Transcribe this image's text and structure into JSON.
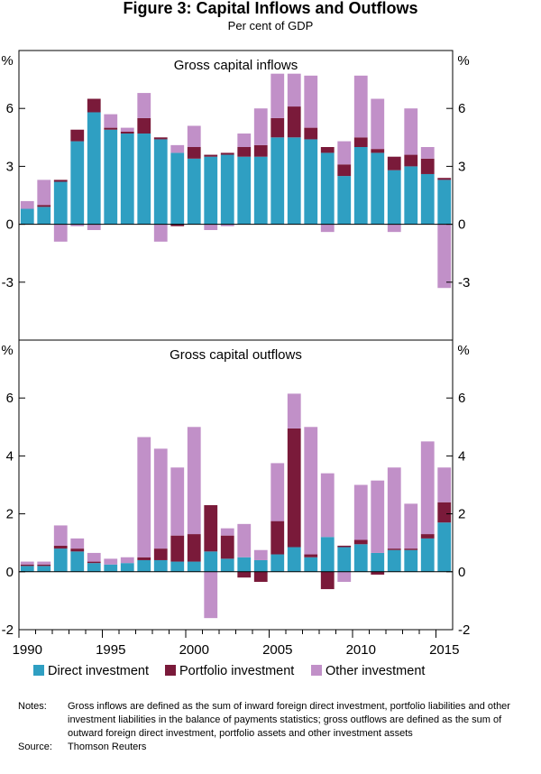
{
  "figure": {
    "title": "Figure 3: Capital Inflows and Outflows",
    "subtitle": "Per cent of GDP"
  },
  "colors": {
    "direct": "#2f9fc2",
    "portfolio": "#7a1a3a",
    "other": "#c190c8"
  },
  "legend": {
    "direct": "Direct investment",
    "portfolio": "Portfolio investment",
    "other": "Other investment"
  },
  "notes": {
    "notes_label": "Notes:",
    "notes_text": "Gross inflows are defined as the sum of inward foreign direct investment, portfolio liabilities and other investment liabilities in the balance of payments statistics; gross outflows are defined as the sum of outward foreign direct investment, portfolio assets and other investment assets",
    "source_label": "Source:",
    "source_text": "Thomson Reuters"
  },
  "chart_data": [
    {
      "type": "bar",
      "stacked": true,
      "title": "Gross capital inflows",
      "unit_label": "%",
      "ylim": [
        -6,
        9
      ],
      "yticks": [
        -3,
        0,
        3,
        6
      ],
      "x": [
        1990,
        1991,
        1992,
        1993,
        1994,
        1995,
        1996,
        1997,
        1998,
        1999,
        2000,
        2001,
        2002,
        2003,
        2004,
        2005,
        2006,
        2007,
        2008,
        2009,
        2010,
        2011,
        2012,
        2013,
        2014,
        2015
      ],
      "series": [
        {
          "name": "Direct investment",
          "key": "direct",
          "values": [
            0.8,
            0.9,
            2.2,
            4.3,
            5.8,
            4.9,
            4.7,
            4.7,
            4.4,
            3.7,
            3.4,
            3.5,
            3.6,
            3.5,
            3.5,
            4.5,
            4.5,
            4.4,
            3.7,
            2.5,
            4.0,
            3.7,
            2.8,
            3.0,
            2.6,
            2.3
          ]
        },
        {
          "name": "Portfolio investment",
          "key": "portfolio",
          "values": [
            0.0,
            0.1,
            0.1,
            0.6,
            0.7,
            0.1,
            0.1,
            0.8,
            0.1,
            -0.1,
            0.6,
            0.1,
            0.1,
            0.5,
            0.6,
            1.0,
            1.6,
            0.6,
            0.3,
            0.6,
            0.5,
            0.2,
            0.7,
            0.6,
            0.8,
            0.1
          ]
        },
        {
          "name": "Other investment",
          "key": "other",
          "values": [
            0.4,
            1.3,
            -0.9,
            -0.1,
            -0.3,
            0.7,
            0.2,
            1.3,
            -0.9,
            0.4,
            1.1,
            -0.3,
            -0.1,
            0.7,
            1.9,
            2.3,
            1.7,
            2.7,
            -0.4,
            1.2,
            3.2,
            2.6,
            -0.4,
            2.4,
            0.6,
            -3.3
          ]
        }
      ]
    },
    {
      "type": "bar",
      "stacked": true,
      "title": "Gross capital outflows",
      "unit_label": "%",
      "ylim": [
        -2,
        8
      ],
      "yticks": [
        -2,
        0,
        2,
        4,
        6
      ],
      "x": [
        1990,
        1991,
        1992,
        1993,
        1994,
        1995,
        1996,
        1997,
        1998,
        1999,
        2000,
        2001,
        2002,
        2003,
        2004,
        2005,
        2006,
        2007,
        2008,
        2009,
        2010,
        2011,
        2012,
        2013,
        2014,
        2015
      ],
      "xtick_labels": [
        "1990",
        "1995",
        "2000",
        "2005",
        "2010",
        "2015"
      ],
      "series": [
        {
          "name": "Direct investment",
          "key": "direct",
          "values": [
            0.2,
            0.2,
            0.8,
            0.7,
            0.3,
            0.25,
            0.3,
            0.4,
            0.4,
            0.35,
            0.35,
            0.7,
            0.45,
            0.5,
            0.4,
            0.6,
            0.85,
            0.5,
            1.2,
            0.85,
            0.95,
            0.65,
            0.75,
            0.75,
            1.15,
            1.7
          ]
        },
        {
          "name": "Portfolio investment",
          "key": "portfolio",
          "values": [
            0.05,
            0.05,
            0.1,
            0.1,
            0.05,
            0.0,
            0.0,
            0.1,
            0.4,
            0.9,
            0.95,
            1.6,
            0.8,
            -0.2,
            -0.35,
            1.15,
            4.1,
            0.1,
            -0.6,
            0.05,
            0.15,
            -0.1,
            0.05,
            0.05,
            0.15,
            0.7
          ]
        },
        {
          "name": "Other investment",
          "key": "other",
          "values": [
            0.1,
            0.1,
            0.7,
            0.35,
            0.3,
            0.2,
            0.2,
            4.15,
            3.45,
            2.35,
            3.7,
            -1.6,
            0.25,
            1.15,
            0.35,
            2.0,
            1.2,
            4.4,
            2.2,
            -0.35,
            1.9,
            2.5,
            2.8,
            1.55,
            3.2,
            1.2
          ]
        }
      ]
    }
  ]
}
